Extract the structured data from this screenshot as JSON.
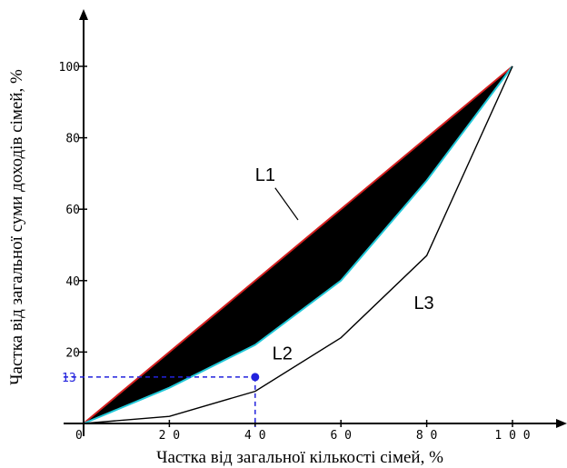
{
  "chart_data": {
    "type": "line",
    "title": "",
    "xlabel": "Частка від загальної кількості сімей, %",
    "ylabel": "Частка від загальної суми доходів сімей, %",
    "xlim": [
      0,
      110
    ],
    "ylim": [
      0,
      115
    ],
    "x_ticks": [
      0,
      20,
      40,
      60,
      80,
      100
    ],
    "y_ticks": [
      20,
      40,
      60,
      80,
      100
    ],
    "x_tick_labels": [
      "0",
      "2 0",
      "4 0",
      "6 0",
      "8 0",
      "1 0 0"
    ],
    "y_tick_labels": [
      "20",
      "40",
      "60",
      "80",
      "100"
    ],
    "series": [
      {
        "name": "L1",
        "color": "#d42020",
        "points": [
          [
            0,
            0
          ],
          [
            100,
            100
          ]
        ]
      },
      {
        "name": "L2",
        "color": "#22c8d8",
        "points": [
          [
            0,
            0
          ],
          [
            20,
            10
          ],
          [
            40,
            22
          ],
          [
            60,
            40
          ],
          [
            80,
            68
          ],
          [
            100,
            100
          ]
        ]
      },
      {
        "name": "L3",
        "color": "#000000",
        "points": [
          [
            0,
            0
          ],
          [
            20,
            2
          ],
          [
            40,
            9
          ],
          [
            60,
            24
          ],
          [
            80,
            47
          ],
          [
            100,
            100
          ]
        ]
      }
    ],
    "shaded_region": {
      "between": [
        "L1",
        "L2"
      ],
      "color": "#000000"
    },
    "series_labels": [
      {
        "text": "L1",
        "x": 40,
        "y": 68,
        "leader_to": [
          50,
          57
        ]
      },
      {
        "text": "L2",
        "x": 44,
        "y": 18
      },
      {
        "text": "L3",
        "x": 77,
        "y": 32
      }
    ],
    "marker": {
      "x": 40,
      "y": 13,
      "label": "13",
      "color": "#2222dd",
      "guide_lines": "dashed"
    },
    "grid": false,
    "legend": "none"
  }
}
